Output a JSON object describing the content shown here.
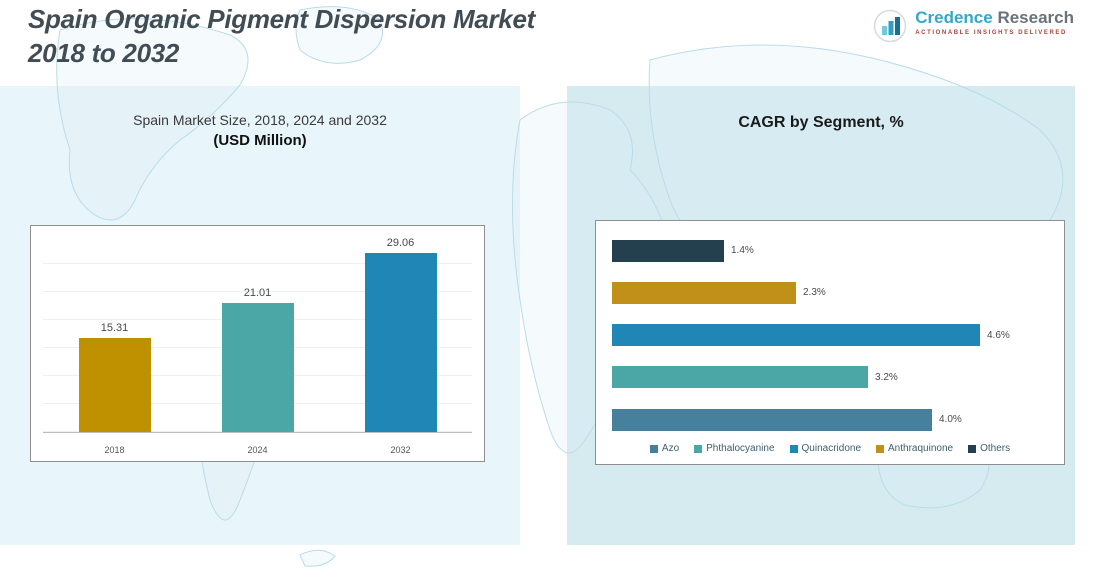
{
  "header": {
    "title_line1": "Spain Organic Pigment Dispersion Market",
    "title_line2": "2018 to 2032"
  },
  "logo": {
    "brand_first": "Credence",
    "brand_second": "Research",
    "tagline": "Actionable Insights Delivered"
  },
  "chart_data": [
    {
      "type": "bar",
      "orientation": "vertical",
      "title": "Spain Market Size, 2018, 2024 and 2032",
      "subtitle": "(USD Million)",
      "categories": [
        "2018",
        "2024",
        "2032"
      ],
      "values": [
        15.31,
        21.01,
        29.06
      ],
      "value_labels": [
        "15.31",
        "21.01",
        "29.06"
      ],
      "colors": [
        "#bf9000",
        "#4ba6a6",
        "#1f86b6"
      ],
      "ylim": [
        0,
        32
      ],
      "grid": true,
      "legend_position": "none"
    },
    {
      "type": "bar",
      "orientation": "horizontal",
      "title": "CAGR by Segment, %",
      "rows": [
        {
          "segment": "Others",
          "value": 1.4,
          "label": "1.4%",
          "color": "#24404f"
        },
        {
          "segment": "Anthraquinone",
          "value": 2.3,
          "label": "2.3%",
          "color": "#c09018"
        },
        {
          "segment": "Quinacridone",
          "value": 4.6,
          "label": "4.6%",
          "color": "#1f86b6"
        },
        {
          "segment": "Phthalocyanine",
          "value": 3.2,
          "label": "3.2%",
          "color": "#4ba6a6"
        },
        {
          "segment": "Azo",
          "value": 4.0,
          "label": "4.0%",
          "color": "#47809c"
        }
      ],
      "xlim": [
        0,
        5
      ],
      "grid": false,
      "legend_position": "bottom",
      "legend": [
        {
          "label": "Azo",
          "color": "#47809c"
        },
        {
          "label": "Phthalocyanine",
          "color": "#4ba6a6"
        },
        {
          "label": "Quinacridone",
          "color": "#1f86b6"
        },
        {
          "label": "Anthraquinone",
          "color": "#c09018"
        },
        {
          "label": "Others",
          "color": "#24404f"
        }
      ]
    }
  ]
}
